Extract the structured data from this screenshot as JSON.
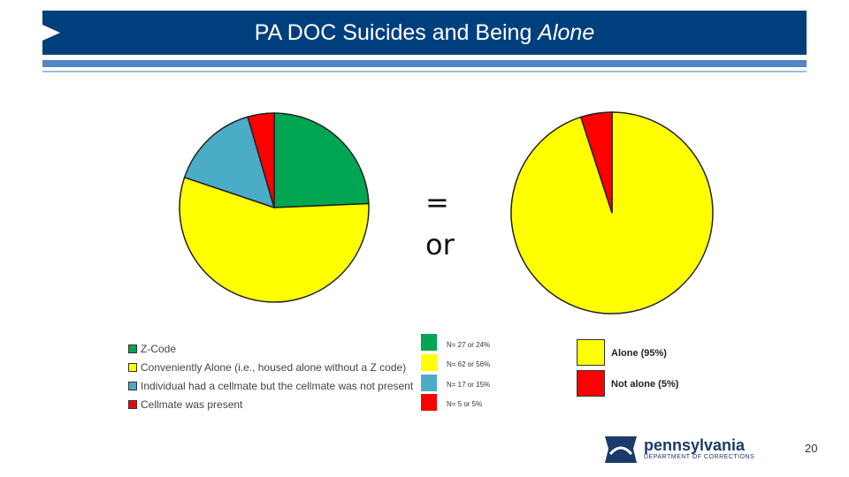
{
  "header": {
    "title_main": "PA DOC Suicides and Being ",
    "title_italic": "Alone"
  },
  "symbols": {
    "equals": "=",
    "or": "or"
  },
  "chart_data": [
    {
      "type": "pie",
      "title": "",
      "categories": [
        "Z-Code",
        "Conveniently Alone (i.e., housed alone without a Z code)",
        "Individual had a cellmate but the cellmate was not present",
        "Cellmate was present"
      ],
      "values": [
        27,
        62,
        17,
        5
      ],
      "percents": [
        24,
        56,
        15,
        5
      ],
      "colors": [
        "#00a651",
        "#ffff00",
        "#4aacc6",
        "#ff0000"
      ],
      "count_labels": [
        "N= 27 or 24%",
        "N= 62 or 56%",
        "N= 17 or 15%",
        "N= 5 or 5%"
      ],
      "legend_placement": "bottom-left"
    },
    {
      "type": "pie",
      "title": "",
      "categories": [
        "Alone (95%)",
        "Not alone (5%)"
      ],
      "values": [
        95,
        5
      ],
      "colors": [
        "#ffff00",
        "#ff0000"
      ],
      "legend_placement": "bottom-right"
    }
  ],
  "logo": {
    "name": "pennsylvania",
    "sub": "DEPARTMENT OF CORRECTIONS"
  },
  "page_number": "20"
}
